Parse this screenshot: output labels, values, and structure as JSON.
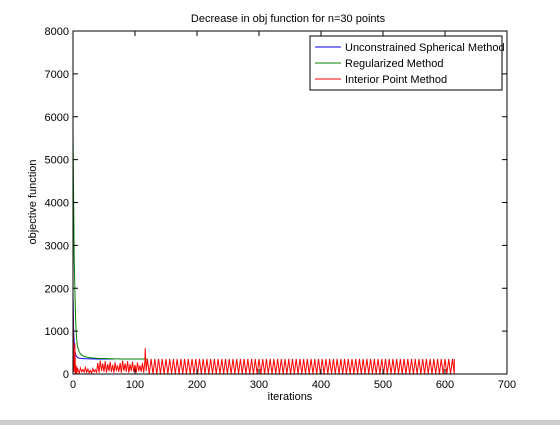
{
  "chart_data": {
    "type": "line",
    "title": "Decrease in obj function for n=30 points",
    "xlabel": "iterations",
    "ylabel": "objective function",
    "xlim": [
      0,
      700
    ],
    "ylim": [
      0,
      8000
    ],
    "xticks": [
      0,
      100,
      200,
      300,
      400,
      500,
      600,
      700
    ],
    "yticks": [
      0,
      1000,
      2000,
      3000,
      4000,
      5000,
      6000,
      7000,
      8000
    ],
    "grid": false,
    "legend_position": "top-right",
    "series": [
      {
        "name": "Unconstrained Spherical Method",
        "color": "#0000ff",
        "x": [
          0,
          1,
          2,
          3,
          4,
          6,
          8,
          10,
          15,
          20,
          30,
          40,
          50,
          60,
          65
        ],
        "y": [
          1900,
          1000,
          700,
          550,
          460,
          400,
          380,
          370,
          360,
          355,
          352,
          350,
          350,
          350,
          350
        ]
      },
      {
        "name": "Regularized Method",
        "color": "#008000",
        "x": [
          0,
          1,
          2,
          3,
          4,
          5,
          6,
          7,
          8,
          10,
          12,
          15,
          20,
          25,
          30,
          40,
          50,
          60,
          70,
          80,
          90,
          100,
          110,
          120
        ],
        "y": [
          5700,
          4100,
          2650,
          2000,
          1400,
          1000,
          800,
          680,
          600,
          520,
          470,
          430,
          400,
          385,
          375,
          365,
          360,
          355,
          352,
          350,
          350,
          350,
          350,
          350
        ]
      },
      {
        "name": "Interior Point Method",
        "color": "#ff0000",
        "x_start": 0,
        "x_end": 615,
        "y_high": 350,
        "y_low": 0,
        "initial_peak": 1800,
        "spike_x": 115,
        "spike_y": 600
      }
    ]
  }
}
